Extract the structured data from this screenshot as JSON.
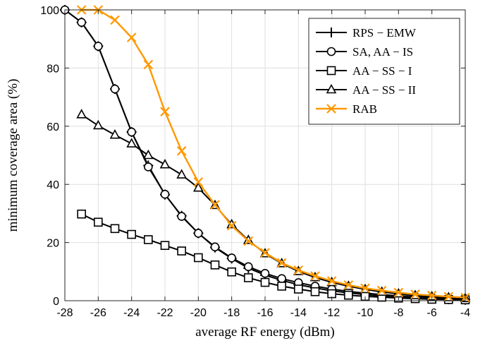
{
  "chart_data": {
    "type": "line",
    "title": "",
    "xlabel": "average RF energy (dBm)",
    "ylabel": "minimum coverage area (%)",
    "xlim": [
      -28,
      -4
    ],
    "ylim": [
      0,
      100
    ],
    "xticks": [
      "-28",
      "-26",
      "-24",
      "-22",
      "-20",
      "-18",
      "-16",
      "-14",
      "-12",
      "-10",
      "-8",
      "-6",
      "-4"
    ],
    "yticks": [
      "0",
      "20",
      "40",
      "60",
      "80",
      "100"
    ],
    "grid": true,
    "legend_position": "top-right",
    "series": [
      {
        "name": "RPS − EMW",
        "color": "#000000",
        "marker": "plus",
        "x": [
          -28,
          -27,
          -26,
          -25,
          -24,
          -23,
          -22,
          -21,
          -20,
          -19,
          -18,
          -17,
          -16,
          -15,
          -14,
          -13,
          -12,
          -11,
          -10,
          -9,
          -8,
          -7,
          -6,
          -5,
          -4
        ],
        "y": [
          100,
          95.7,
          87.5,
          72.8,
          58,
          46.5,
          36.5,
          29.2,
          23.2,
          18.3,
          14.5,
          11.2,
          8.8,
          7,
          5.5,
          4.4,
          3.4,
          2.7,
          2.1,
          1.6,
          1.2,
          0.9,
          0.7,
          0.5,
          0.3
        ]
      },
      {
        "name": "SA, AA − IS",
        "color": "#000000",
        "marker": "circle",
        "x": [
          -28,
          -27,
          -26,
          -25,
          -24,
          -23,
          -22,
          -21,
          -20,
          -19,
          -18,
          -17,
          -16,
          -15,
          -14,
          -13,
          -12,
          -11,
          -10,
          -9,
          -8,
          -7,
          -6,
          -5,
          -4
        ],
        "y": [
          100,
          95.7,
          87.5,
          72.8,
          58,
          46,
          36.6,
          29,
          23.2,
          18.5,
          14.7,
          11.7,
          9.4,
          7.6,
          6.2,
          5,
          4,
          3.2,
          2.6,
          2.1,
          1.7,
          1.4,
          1.1,
          0.8,
          0.6
        ]
      },
      {
        "name": "AA − SS − I",
        "color": "#000000",
        "marker": "square",
        "x": [
          -27,
          -26,
          -25,
          -24,
          -23,
          -22,
          -21,
          -20,
          -19,
          -18,
          -17,
          -16,
          -15,
          -14,
          -13,
          -12,
          -11,
          -10,
          -9,
          -8,
          -7,
          -6,
          -5,
          -4
        ],
        "y": [
          29.8,
          27,
          24.8,
          22.8,
          21,
          19,
          17.1,
          14.8,
          12.3,
          9.9,
          7.9,
          6.3,
          5,
          4,
          3.1,
          2.4,
          1.9,
          1.5,
          1.2,
          0.9,
          0.7,
          0.5,
          0.4,
          0.3
        ]
      },
      {
        "name": "AA − SS − II",
        "color": "#000000",
        "marker": "triangle",
        "x": [
          -27,
          -26,
          -25,
          -24,
          -23,
          -22,
          -21,
          -20,
          -19,
          -18,
          -17,
          -16,
          -15,
          -14,
          -13,
          -12,
          -11,
          -10,
          -9,
          -8,
          -7,
          -6,
          -5,
          -4
        ],
        "y": [
          64,
          60.2,
          57,
          54,
          50,
          46.8,
          43.3,
          38.8,
          32.8,
          26.2,
          20.8,
          16.2,
          12.8,
          10.1,
          8,
          6.3,
          5,
          3.9,
          3,
          2.4,
          1.8,
          1.4,
          1.1,
          0.8
        ]
      },
      {
        "name": "RAB",
        "color": "#ff9900",
        "marker": "x",
        "x": [
          -27,
          -26,
          -25,
          -24,
          -23,
          -22,
          -21,
          -20,
          -19,
          -18,
          -17,
          -16,
          -15,
          -14,
          -13,
          -12,
          -11,
          -10,
          -9,
          -8,
          -7,
          -6,
          -5,
          -4
        ],
        "y": [
          100,
          100,
          96.5,
          90.5,
          81.2,
          65,
          51.5,
          40.8,
          33,
          25.8,
          20.5,
          16.5,
          13,
          10.5,
          8.5,
          6.8,
          5.4,
          4.3,
          3.5,
          2.8,
          2.2,
          1.8,
          1.4,
          1.1
        ]
      }
    ]
  }
}
